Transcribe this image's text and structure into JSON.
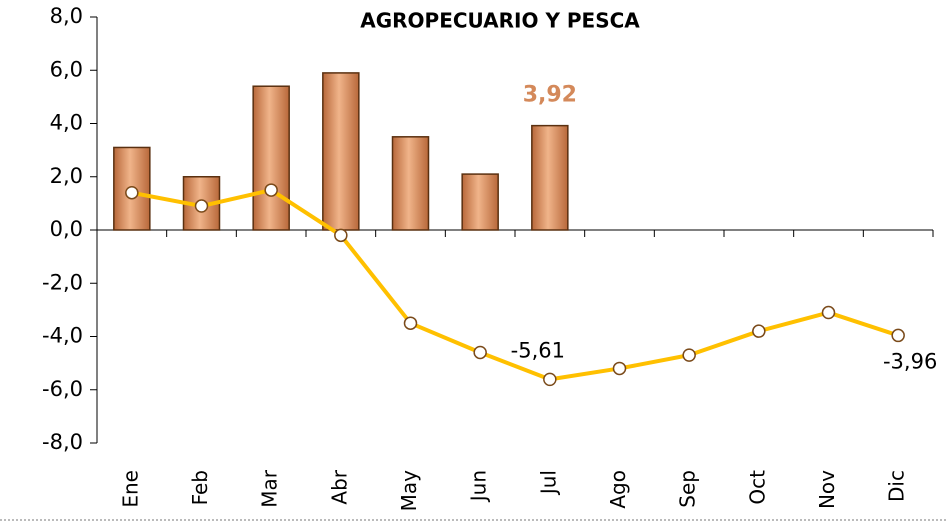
{
  "chart_data": {
    "type": "bar-line",
    "title": "AGROPECUARIO Y PESCA",
    "categories": [
      "Ene",
      "Feb",
      "Mar",
      "Abr",
      "May",
      "Jun",
      "Jul",
      "Ago",
      "Sep",
      "Oct",
      "Nov",
      "Dic"
    ],
    "series": [
      {
        "type": "bar",
        "color": "#d4895a",
        "values": [
          3.1,
          2.0,
          5.4,
          5.9,
          3.5,
          2.1,
          3.92,
          null,
          null,
          null,
          null,
          null
        ],
        "value_labels": [
          null,
          null,
          null,
          null,
          null,
          null,
          "3,92",
          null,
          null,
          null,
          null,
          null
        ]
      },
      {
        "type": "line",
        "color": "#ffc000",
        "values": [
          1.4,
          0.9,
          1.5,
          -0.2,
          -3.5,
          -4.6,
          -5.61,
          -5.2,
          -4.7,
          -3.8,
          -3.1,
          -3.96
        ],
        "value_labels": [
          null,
          null,
          null,
          null,
          null,
          null,
          "-5,61",
          null,
          null,
          null,
          null,
          "-3,96"
        ]
      }
    ],
    "ylim": [
      -8,
      8
    ],
    "yticks": [
      {
        "value": -8,
        "label": "-8,0"
      },
      {
        "value": -6,
        "label": "-6,0"
      },
      {
        "value": -4,
        "label": "-4,0"
      },
      {
        "value": -2,
        "label": "-2,0"
      },
      {
        "value": 0,
        "label": "0,0"
      },
      {
        "value": 2,
        "label": "2,0"
      },
      {
        "value": 4,
        "label": "4,0"
      },
      {
        "value": 6,
        "label": "6,0"
      },
      {
        "value": 8,
        "label": "8,0"
      }
    ],
    "grid": false
  }
}
